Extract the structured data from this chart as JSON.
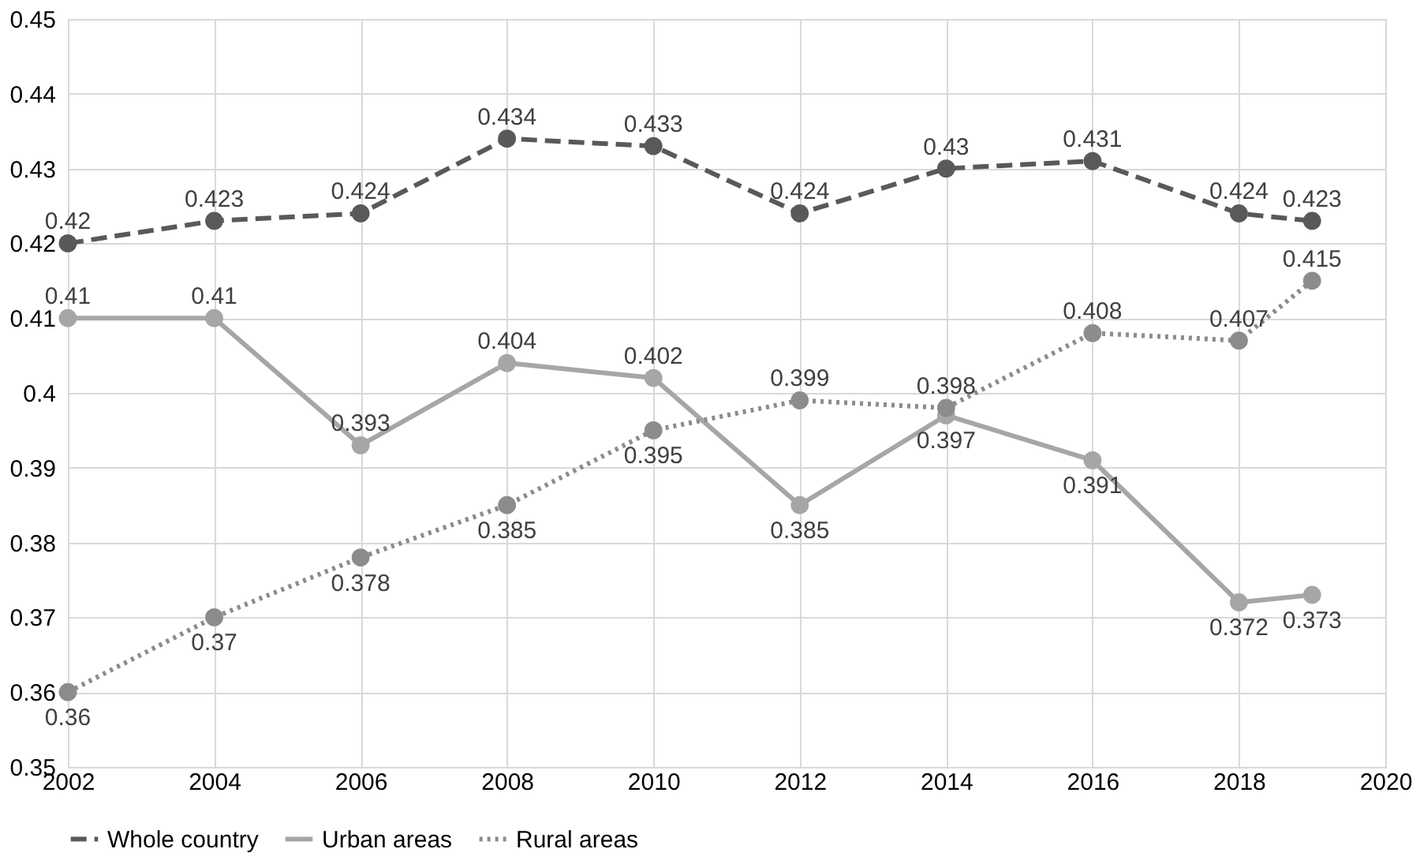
{
  "chart_data": {
    "type": "line",
    "x": [
      2002,
      2004,
      2006,
      2008,
      2010,
      2012,
      2014,
      2016,
      2018,
      2019
    ],
    "series": [
      {
        "name": "Whole country",
        "color": "#595959",
        "line_style": "dashed",
        "values": [
          0.42,
          0.423,
          0.424,
          0.434,
          0.433,
          0.424,
          0.43,
          0.431,
          0.424,
          0.423
        ]
      },
      {
        "name": "Urban areas",
        "color": "#a6a6a6",
        "line_style": "solid",
        "values": [
          0.41,
          0.41,
          0.393,
          0.404,
          0.402,
          0.385,
          0.397,
          0.391,
          0.372,
          0.373
        ]
      },
      {
        "name": "Rural areas",
        "color": "#8c8c8c",
        "line_style": "dotted",
        "values": [
          0.36,
          0.37,
          0.378,
          0.385,
          0.395,
          0.399,
          0.398,
          0.408,
          0.407,
          0.415
        ]
      }
    ],
    "xlim": [
      2002,
      2020
    ],
    "xticks": [
      2002,
      2004,
      2006,
      2008,
      2010,
      2012,
      2014,
      2016,
      2018,
      2020
    ],
    "ylim": [
      0.35,
      0.45
    ],
    "yticks": [
      0.35,
      0.36,
      0.37,
      0.38,
      0.39,
      0.4,
      0.41,
      0.42,
      0.43,
      0.44,
      0.45
    ],
    "grid": true,
    "legend": "bottom",
    "marker": "circle",
    "data_labels": true
  }
}
